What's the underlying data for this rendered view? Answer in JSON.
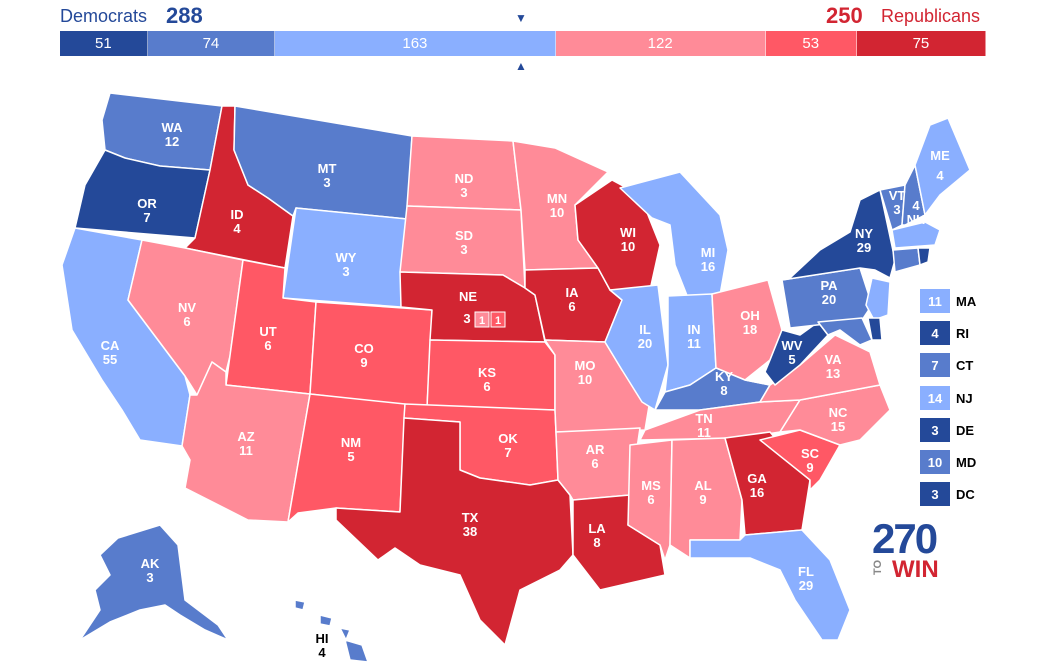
{
  "header": {
    "dem_label": "Democrats",
    "dem_total": "288",
    "rep_total": "250",
    "rep_label": "Republicans",
    "marker": "▼",
    "marker_up": "▲"
  },
  "bar": [
    {
      "value": 51,
      "label": "51",
      "color": "#244999"
    },
    {
      "value": 74,
      "label": "74",
      "color": "#587ccc"
    },
    {
      "value": 163,
      "label": "163",
      "color": "#8aafff"
    },
    {
      "value": 122,
      "label": "122",
      "color": "#ff8b98"
    },
    {
      "value": 53,
      "label": "53",
      "color": "#ff5865"
    },
    {
      "value": 75,
      "label": "75",
      "color": "#d22532"
    }
  ],
  "colors": {
    "safe_d": "#244999",
    "likely_d": "#587ccc",
    "lean_d": "#8aafff",
    "lean_r": "#ff8b98",
    "likely_r": "#ff5865",
    "safe_r": "#d22532"
  },
  "states": [
    {
      "abbr": "WA",
      "ev": "12"
    },
    {
      "abbr": "OR",
      "ev": "7"
    },
    {
      "abbr": "CA",
      "ev": "55"
    },
    {
      "abbr": "ID",
      "ev": "4"
    },
    {
      "abbr": "NV",
      "ev": "6"
    },
    {
      "abbr": "MT",
      "ev": "3"
    },
    {
      "abbr": "WY",
      "ev": "3"
    },
    {
      "abbr": "UT",
      "ev": "6"
    },
    {
      "abbr": "AZ",
      "ev": "11"
    },
    {
      "abbr": "CO",
      "ev": "9"
    },
    {
      "abbr": "NM",
      "ev": "5"
    },
    {
      "abbr": "ND",
      "ev": "3"
    },
    {
      "abbr": "SD",
      "ev": "3"
    },
    {
      "abbr": "NE",
      "ev": "3"
    },
    {
      "abbr": "KS",
      "ev": "6"
    },
    {
      "abbr": "OK",
      "ev": "7"
    },
    {
      "abbr": "TX",
      "ev": "38"
    },
    {
      "abbr": "MN",
      "ev": "10"
    },
    {
      "abbr": "IA",
      "ev": "6"
    },
    {
      "abbr": "MO",
      "ev": "10"
    },
    {
      "abbr": "AR",
      "ev": "6"
    },
    {
      "abbr": "LA",
      "ev": "8"
    },
    {
      "abbr": "WI",
      "ev": "10"
    },
    {
      "abbr": "IL",
      "ev": "20"
    },
    {
      "abbr": "MI",
      "ev": "16"
    },
    {
      "abbr": "IN",
      "ev": "11"
    },
    {
      "abbr": "OH",
      "ev": "18"
    },
    {
      "abbr": "KY",
      "ev": "8"
    },
    {
      "abbr": "TN",
      "ev": "11"
    },
    {
      "abbr": "MS",
      "ev": "6"
    },
    {
      "abbr": "AL",
      "ev": "9"
    },
    {
      "abbr": "GA",
      "ev": "16"
    },
    {
      "abbr": "FL",
      "ev": "29"
    },
    {
      "abbr": "SC",
      "ev": "9"
    },
    {
      "abbr": "NC",
      "ev": "15"
    },
    {
      "abbr": "VA",
      "ev": "13"
    },
    {
      "abbr": "WV",
      "ev": "5"
    },
    {
      "abbr": "PA",
      "ev": "20"
    },
    {
      "abbr": "NY",
      "ev": "29"
    },
    {
      "abbr": "VT",
      "ev": "3"
    },
    {
      "abbr": "NH",
      "ev": "4"
    },
    {
      "abbr": "ME",
      "ev": "4"
    },
    {
      "abbr": "AK",
      "ev": "3"
    },
    {
      "abbr": "HI",
      "ev": "4"
    }
  ],
  "ne_districts": [
    "1",
    "1"
  ],
  "legend": [
    {
      "ev": "11",
      "abbr": "MA",
      "color": "#8aafff"
    },
    {
      "ev": "4",
      "abbr": "RI",
      "color": "#244999"
    },
    {
      "ev": "7",
      "abbr": "CT",
      "color": "#587ccc"
    },
    {
      "ev": "14",
      "abbr": "NJ",
      "color": "#8aafff"
    },
    {
      "ev": "3",
      "abbr": "DE",
      "color": "#244999"
    },
    {
      "ev": "10",
      "abbr": "MD",
      "color": "#587ccc"
    },
    {
      "ev": "3",
      "abbr": "DC",
      "color": "#244999"
    }
  ],
  "logo": {
    "number": "270",
    "to": "TO",
    "win": "WIN"
  }
}
